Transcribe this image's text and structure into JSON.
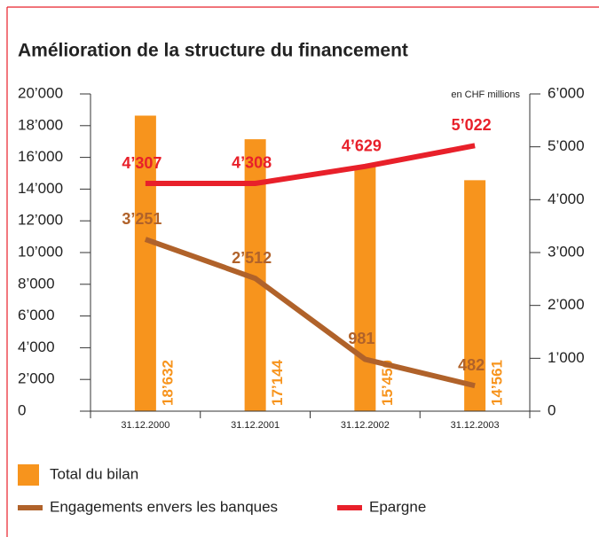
{
  "chart_data": {
    "type": "bar",
    "title": "Amélioration de la structure du financement",
    "annotation": "en CHF millions",
    "categories": [
      "31.12.2000",
      "31.12.2001",
      "31.12.2002",
      "31.12.2003"
    ],
    "ylim": [
      0,
      20000
    ],
    "yticks": [
      0,
      {
        "value": 2000,
        "label": "2’000"
      },
      {
        "value": 4000,
        "label": "4’000"
      },
      {
        "value": 6000,
        "label": "6’000"
      },
      {
        "value": 8000,
        "label": "8’000"
      },
      {
        "value": 10000,
        "label": "10’000"
      },
      {
        "value": 12000,
        "label": "12’000"
      },
      {
        "value": 14000,
        "label": "14’000"
      },
      {
        "value": 16000,
        "label": "16’000"
      },
      {
        "value": 18000,
        "label": "18’000"
      },
      {
        "value": 20000,
        "label": "20’000"
      }
    ],
    "y2lim": [
      0,
      6000
    ],
    "y2ticks": [
      0,
      {
        "value": 1000,
        "label": "1’000"
      },
      {
        "value": 2000,
        "label": "2’000"
      },
      {
        "value": 3000,
        "label": "3’000"
      },
      {
        "value": 4000,
        "label": "4’000"
      },
      {
        "value": 5000,
        "label": "5’000"
      },
      {
        "value": 6000,
        "label": "6’000"
      }
    ],
    "series": [
      {
        "name": "Total du bilan",
        "type": "bar",
        "axis": "y",
        "color": "#f7941d",
        "values": [
          18632,
          17144,
          15450,
          14561
        ],
        "value_labels": [
          "18’632",
          "17’144",
          "15’450",
          "14’561"
        ]
      },
      {
        "name": "Engagements envers les banques",
        "type": "line",
        "axis": "y2",
        "color": "#b0622a",
        "values": [
          3251,
          2512,
          981,
          482
        ],
        "value_labels": [
          "3’251",
          "2’512",
          "981",
          "482"
        ]
      },
      {
        "name": "Epargne",
        "type": "line",
        "axis": "y2",
        "color": "#e8202a",
        "values": [
          4307,
          4308,
          4629,
          5022
        ],
        "value_labels": [
          "4’307",
          "4’308",
          "4’629",
          "5’022"
        ]
      }
    ]
  }
}
